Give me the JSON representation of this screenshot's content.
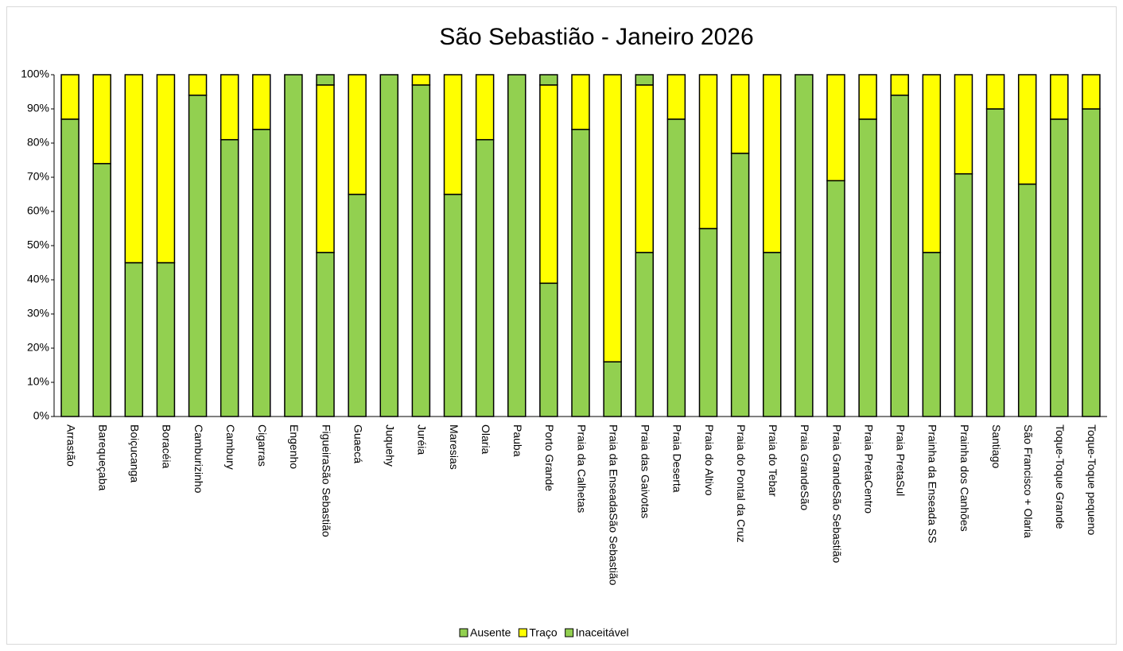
{
  "chart_data": {
    "type": "stacked_bar",
    "title": "São Sebastião - Janeiro 2026",
    "categories": [
      "Arrastão",
      "Barequeçaba",
      "Boiçucanga",
      "Boracéia",
      "Camburizinho",
      "Cambury",
      "Cigarras",
      "Engenho",
      "FigueiraSão Sebastião",
      "Guaecá",
      "Juquehy",
      "Juréia",
      "Maresias",
      "Olaria",
      "Pauba",
      "Porto Grande",
      "Praia da Calhetas",
      "Praia da EnseadaSão Sebastião",
      "Praia das Gaivotas",
      "Praia Deserta",
      "Praia do Altivo",
      "Praia do Pontal da Cruz",
      "Praia do Tebar",
      "Praia GrandeSão",
      "Praia GrandeSão Sebastião",
      "Praia PretaCentro",
      "Praia PretaSul",
      "Prainha da Enseada SS",
      "Prainha dos Canhões",
      "Santiago",
      "São Francisco + Olaria",
      "Toque-Toque Grande",
      "Toque-Toque pequeno"
    ],
    "series": [
      {
        "name": "Ausente",
        "color": "#92d050",
        "values": [
          87,
          74,
          45,
          45,
          94,
          81,
          84,
          100,
          48,
          65,
          100,
          97,
          65,
          81,
          100,
          39,
          84,
          16,
          48,
          87,
          55,
          77,
          48,
          100,
          69,
          87,
          94,
          48,
          71,
          90,
          68,
          87,
          90
        ]
      },
      {
        "name": "Traço",
        "color": "#ffff00",
        "values": [
          13,
          26,
          55,
          55,
          6,
          19,
          16,
          0,
          49,
          35,
          0,
          3,
          35,
          19,
          0,
          58,
          16,
          84,
          49,
          13,
          45,
          23,
          52,
          0,
          31,
          13,
          6,
          52,
          29,
          10,
          32,
          13,
          10
        ]
      },
      {
        "name": "Inaceitável",
        "color": "#92d050",
        "values": [
          0,
          0,
          0,
          0,
          0,
          0,
          0,
          0,
          3,
          0,
          0,
          0,
          0,
          0,
          0,
          3,
          0,
          0,
          3,
          0,
          0,
          0,
          0,
          0,
          0,
          0,
          0,
          0,
          0,
          0,
          0,
          0,
          0
        ]
      }
    ],
    "ylim": [
      0,
      100
    ],
    "yticks": [
      {
        "value": 0,
        "label": "0%"
      },
      {
        "value": 10,
        "label": "10%"
      },
      {
        "value": 20,
        "label": "20%"
      },
      {
        "value": 30,
        "label": "30%"
      },
      {
        "value": 40,
        "label": "40%"
      },
      {
        "value": 50,
        "label": "50%"
      },
      {
        "value": 60,
        "label": "60%"
      },
      {
        "value": 70,
        "label": "70%"
      },
      {
        "value": 80,
        "label": "80%"
      },
      {
        "value": 90,
        "label": "90%"
      },
      {
        "value": 100,
        "label": "100%"
      }
    ],
    "legend": "bottom",
    "grid": false
  }
}
